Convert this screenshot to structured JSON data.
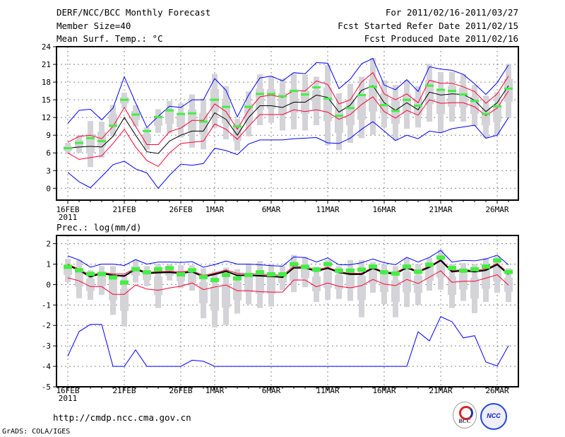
{
  "header": {
    "title": "DERF/NCC/BCC Monthly Forecast",
    "member_size": "Member Size=40",
    "variable": "Mean Surf. Temp.: °C",
    "period": "For 2011/02/16-2011/03/27",
    "started": "Fcst Started Refer Date 2011/02/15",
    "produced": "Fcst Produced Date 2011/02/16"
  },
  "footer": {
    "url": "http://cmdp.ncc.cma.gov.cn",
    "credit": "GrADS: COLA/IGES",
    "logo_bcc": "BCC",
    "logo_ncc": "NCC"
  },
  "colors": {
    "extreme": "#0000ff",
    "spread": "#ff0033",
    "mean": "#000000",
    "mode": "#44ee44",
    "range": "#d3d3d8",
    "grid": "#888888"
  },
  "chart_data": [
    {
      "type": "line",
      "title": "Mean Surf. Temp.: °C",
      "x_start": "2011-02-16",
      "n_days": 40,
      "x_tick_days": [
        0,
        5,
        10,
        13,
        18,
        23,
        28,
        33,
        38
      ],
      "x_tick_labels": [
        "16FEB",
        "21FEB",
        "26FEB",
        "1MAR",
        "6MAR",
        "11MAR",
        "16MAR",
        "21MAR",
        "26MAR"
      ],
      "x_year_label": "2011",
      "ylim": [
        -2,
        24
      ],
      "y_ticks": [
        0,
        3,
        6,
        9,
        12,
        15,
        18,
        21,
        24
      ],
      "grid": true,
      "series": [
        {
          "name": "ensemble-max",
          "color": "blue",
          "values": [
            11.0,
            13.2,
            13.4,
            11.6,
            13.6,
            18.9,
            14.5,
            10.3,
            12.2,
            13.9,
            13.7,
            15.0,
            15.0,
            18.6,
            16.6,
            12.1,
            15.8,
            18.7,
            19.0,
            18.2,
            19.6,
            19.4,
            21.3,
            21.2,
            16.9,
            18.5,
            21.1,
            22.0,
            17.5,
            16.7,
            18.4,
            16.4,
            20.6,
            20.2,
            20.0,
            19.3,
            17.7,
            15.9,
            17.9,
            20.9
          ]
        },
        {
          "name": "upper-spread",
          "color": "red",
          "values": [
            7.8,
            8.8,
            9.0,
            8.4,
            10.5,
            13.7,
            10.5,
            7.4,
            7.4,
            9.6,
            10.2,
            11.5,
            11.5,
            14.3,
            13.0,
            10.0,
            13.2,
            15.5,
            15.8,
            15.4,
            16.6,
            16.5,
            18.2,
            17.6,
            14.3,
            15.0,
            18.0,
            19.6,
            16.0,
            15.0,
            16.0,
            14.5,
            18.3,
            17.8,
            17.8,
            17.2,
            16.4,
            14.4,
            16.0,
            19.0
          ]
        },
        {
          "name": "ensemble-mean",
          "color": "black",
          "values": [
            6.8,
            7.0,
            7.1,
            7.0,
            8.8,
            12.0,
            9.0,
            6.2,
            5.9,
            8.0,
            9.0,
            9.7,
            9.7,
            12.8,
            11.7,
            9.0,
            12.0,
            14.0,
            14.0,
            13.7,
            14.6,
            14.6,
            15.8,
            15.4,
            12.9,
            14.1,
            16.6,
            17.4,
            14.5,
            13.2,
            14.5,
            13.3,
            16.3,
            15.8,
            16.0,
            15.9,
            14.9,
            13.0,
            14.5,
            17.4
          ]
        },
        {
          "name": "lower-spread",
          "color": "red",
          "values": [
            6.0,
            4.9,
            5.2,
            5.5,
            7.6,
            10.0,
            7.0,
            4.7,
            3.7,
            6.0,
            7.6,
            7.8,
            8.0,
            10.9,
            10.0,
            8.3,
            10.5,
            12.5,
            12.5,
            12.5,
            13.3,
            13.0,
            13.3,
            12.9,
            11.7,
            12.5,
            14.2,
            15.5,
            13.0,
            11.9,
            13.2,
            12.4,
            15.0,
            14.4,
            14.5,
            14.5,
            13.8,
            12.3,
            13.6,
            16.5
          ]
        },
        {
          "name": "ensemble-min",
          "color": "blue",
          "values": [
            2.7,
            1.1,
            0.1,
            2.0,
            4.0,
            4.6,
            3.3,
            2.6,
            0.0,
            2.2,
            4.1,
            3.9,
            4.2,
            6.8,
            6.4,
            5.7,
            7.5,
            8.2,
            8.2,
            8.2,
            8.4,
            8.5,
            8.6,
            7.7,
            7.6,
            8.5,
            10.0,
            11.3,
            9.7,
            8.1,
            9.0,
            8.4,
            9.7,
            9.4,
            10.1,
            10.4,
            10.7,
            8.5,
            9.0,
            12.0
          ]
        },
        {
          "name": "mode",
          "color": "green",
          "values": [
            6.8,
            7.7,
            8.5,
            8.0,
            10.6,
            15.0,
            12.5,
            9.7,
            12.1,
            13.2,
            12.6,
            12.7,
            11.3,
            15.0,
            13.8,
            10.5,
            13.8,
            16.0,
            16.0,
            15.6,
            16.5,
            15.9,
            17.1,
            15.2,
            12.3,
            13.6,
            15.8,
            17.2,
            14.1,
            13.1,
            15.0,
            14.0,
            17.4,
            16.7,
            16.5,
            15.9,
            14.8,
            12.6,
            13.9,
            16.9
          ]
        }
      ],
      "range_low": [
        5.8,
        6.0,
        3.6,
        5.2,
        8.8,
        13.6,
        10.5,
        6.5,
        9.4,
        9.3,
        8.6,
        6.9,
        6.6,
        10.3,
        8.3,
        6.4,
        8.8,
        10.7,
        11.1,
        9.8,
        10.0,
        9.8,
        10.7,
        7.3,
        6.5,
        7.7,
        8.5,
        9.1,
        10.3,
        8.1,
        10.1,
        10.3,
        11.3,
        9.5,
        11.3,
        11.3,
        10.5,
        8.5,
        9.0,
        11.9
      ],
      "range_high": [
        7.7,
        9.0,
        11.4,
        11.3,
        14.1,
        16.2,
        14.1,
        10.3,
        13.4,
        14.8,
        14.4,
        15.9,
        15.2,
        19.4,
        17.3,
        11.8,
        16.4,
        19.3,
        19.0,
        18.6,
        19.4,
        19.2,
        18.9,
        20.9,
        16.1,
        17.7,
        18.9,
        22.1,
        18.3,
        17.5,
        18.3,
        17.3,
        21.1,
        19.7,
        19.7,
        19.3,
        17.5,
        15.7,
        16.3,
        21.1
      ]
    },
    {
      "type": "line",
      "title": "Prec.: log(mm/d)",
      "x_start": "2011-02-16",
      "n_days": 40,
      "x_tick_days": [
        0,
        5,
        10,
        13,
        18,
        23,
        28,
        33,
        38
      ],
      "x_tick_labels": [
        "16FEB",
        "21FEB",
        "26FEB",
        "1MAR",
        "6MAR",
        "11MAR",
        "16MAR",
        "21MAR",
        "26MAR"
      ],
      "x_year_label": "2011",
      "ylim": [
        -5,
        2.4
      ],
      "y_ticks": [
        -5,
        -4,
        -3,
        -2,
        -1,
        0,
        1,
        2
      ],
      "grid": true,
      "series": [
        {
          "name": "ensemble-max",
          "color": "blue",
          "values": [
            1.4,
            1.2,
            0.85,
            1.0,
            1.0,
            0.93,
            1.22,
            1.0,
            1.1,
            1.1,
            1.08,
            1.12,
            0.85,
            0.98,
            1.15,
            1.0,
            1.0,
            0.97,
            0.92,
            0.9,
            1.35,
            1.32,
            1.1,
            1.3,
            0.97,
            0.97,
            1.07,
            1.25,
            1.07,
            0.97,
            1.33,
            1.1,
            1.33,
            1.67,
            1.1,
            1.18,
            1.16,
            1.25,
            1.44,
            0.96
          ]
        },
        {
          "name": "upper-spread",
          "color": "red",
          "values": [
            1.0,
            0.75,
            0.45,
            0.6,
            0.52,
            0.52,
            0.8,
            0.6,
            0.63,
            0.65,
            0.62,
            0.68,
            0.45,
            0.56,
            0.72,
            0.55,
            0.53,
            0.5,
            0.48,
            0.45,
            0.9,
            0.88,
            0.72,
            0.85,
            0.63,
            0.55,
            0.55,
            0.85,
            0.62,
            0.58,
            0.87,
            0.66,
            0.9,
            1.22,
            0.68,
            0.73,
            0.68,
            0.76,
            1.03,
            0.56
          ]
        },
        {
          "name": "ensemble-mean",
          "color": "black",
          "values": [
            0.95,
            0.7,
            0.38,
            0.55,
            0.45,
            0.42,
            0.75,
            0.55,
            0.58,
            0.6,
            0.55,
            0.63,
            0.38,
            0.5,
            0.65,
            0.45,
            0.45,
            0.43,
            0.4,
            0.36,
            0.82,
            0.82,
            0.65,
            0.8,
            0.59,
            0.5,
            0.5,
            0.8,
            0.57,
            0.53,
            0.82,
            0.61,
            0.85,
            1.18,
            0.63,
            0.68,
            0.63,
            0.7,
            0.98,
            0.5
          ]
        },
        {
          "name": "lower-spread",
          "color": "red",
          "values": [
            0.33,
            0.18,
            -0.1,
            -0.1,
            -0.48,
            -0.48,
            -0.02,
            -0.22,
            -0.28,
            -0.17,
            -0.08,
            0.08,
            -0.25,
            -0.12,
            -0.02,
            -0.3,
            -0.3,
            -0.35,
            -0.37,
            -0.37,
            0.22,
            0.22,
            -0.11,
            0.08,
            -0.09,
            -0.16,
            -0.05,
            0.25,
            0.02,
            -0.05,
            0.25,
            0.05,
            0.36,
            0.67,
            0.11,
            0.16,
            0.16,
            0.31,
            0.48,
            -0.03
          ]
        },
        {
          "name": "ensemble-min",
          "color": "blue",
          "values": [
            -3.5,
            -2.3,
            -1.95,
            -1.95,
            -4.0,
            -4.0,
            -3.2,
            -4.0,
            -4.0,
            -4.0,
            -4.0,
            -3.7,
            -3.75,
            -4.0,
            -4.0,
            -4.0,
            -4.0,
            -4.0,
            -4.0,
            -4.0,
            -4.0,
            -4.0,
            -4.0,
            -4.0,
            -4.0,
            -4.0,
            -4.0,
            -4.0,
            -4.0,
            -4.0,
            -4.0,
            -2.31,
            -2.76,
            -1.57,
            -1.82,
            -2.61,
            -2.5,
            -3.79,
            -3.98,
            -2.99
          ]
        },
        {
          "name": "mode",
          "color": "green",
          "values": [
            0.92,
            0.75,
            0.57,
            0.57,
            0.4,
            0.15,
            0.8,
            0.65,
            0.8,
            0.85,
            0.55,
            0.75,
            0.42,
            0.27,
            0.52,
            0.35,
            0.52,
            0.65,
            0.55,
            0.55,
            1.05,
            0.92,
            0.78,
            1.05,
            0.73,
            0.73,
            0.78,
            0.93,
            0.65,
            0.59,
            0.93,
            0.68,
            1.02,
            1.37,
            0.86,
            0.73,
            0.8,
            0.93,
            1.23,
            0.67
          ]
        }
      ],
      "range_low": [
        0.12,
        -0.67,
        -0.75,
        -0.5,
        -1.48,
        -2.05,
        0.1,
        -0.08,
        -1.15,
        0.2,
        -0.18,
        -0.3,
        -1.65,
        -2.1,
        -1.98,
        -1.42,
        -0.97,
        -1.15,
        -1.08,
        -0.27,
        -0.37,
        -0.13,
        -0.85,
        -0.75,
        -0.7,
        -0.8,
        -1.6,
        -0.4,
        -0.95,
        -1.6,
        -1.1,
        -1.0,
        -0.3,
        -0.25,
        -1.15,
        -0.8,
        -1.4,
        -0.85,
        -0.4,
        -0.85
      ],
      "range_high": [
        1.25,
        1.2,
        0.7,
        0.9,
        0.9,
        0.5,
        1.2,
        0.9,
        1.0,
        1.0,
        0.95,
        0.95,
        0.8,
        0.65,
        0.83,
        0.75,
        1.0,
        1.15,
        1.0,
        0.9,
        1.45,
        1.35,
        0.88,
        1.2,
        0.9,
        1.2,
        1.2,
        1.1,
        1.0,
        0.9,
        1.3,
        1.0,
        1.3,
        1.7,
        1.0,
        1.05,
        1.0,
        1.3,
        1.4,
        0.8
      ]
    }
  ]
}
